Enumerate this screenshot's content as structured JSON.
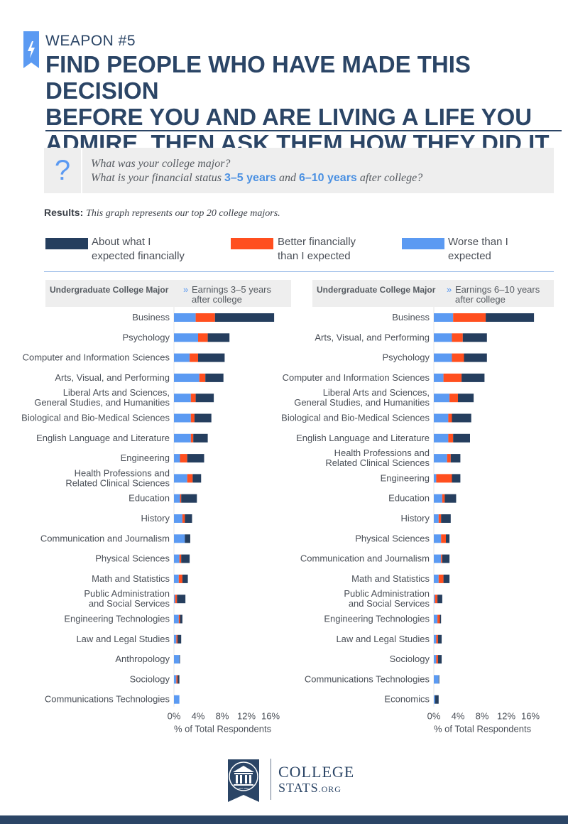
{
  "header": {
    "weapon": "WEAPON #5",
    "headline_lines": [
      "FIND PEOPLE WHO HAVE MADE THIS DECISION",
      "BEFORE YOU AND ARE LIVING A LIFE YOU",
      "ADMIRE. THEN ASK THEM HOW THEY DID IT."
    ]
  },
  "question": {
    "icon": "?",
    "line1": "What was your college major?",
    "line2_prefix": "What is your financial status ",
    "line2_hl1": "3–5 years",
    "line2_mid": " and ",
    "line2_hl2": "6–10  years",
    "line2_suffix": " after college?"
  },
  "results": {
    "label": "Results:",
    "text": "This graph represents our top 20 college majors."
  },
  "legend": [
    {
      "line1": "About what I",
      "line2": "expected financially",
      "color": "#253e5e"
    },
    {
      "line1": "Better financially",
      "line2": "than I expected",
      "color": "#ff4f1f"
    },
    {
      "line1": "Worse than I",
      "line2": "expected",
      "color": "#5b9af2"
    }
  ],
  "panels": [
    {
      "major": "Undergraduate College Major",
      "arrow": "»",
      "earnings_line1": "Earnings 3–5 years",
      "earnings_line2": "after college"
    },
    {
      "major": "Undergraduate College Major",
      "arrow": "»",
      "earnings_line1": "Earnings 6–10 years",
      "earnings_line2": "after college"
    }
  ],
  "chart_data": [
    {
      "type": "bar",
      "orientation": "horizontal",
      "stacked": true,
      "title": "Earnings 3–5 years after college",
      "xlabel": "% of Total Respondents",
      "xlim": [
        0,
        16
      ],
      "ticks": [
        "0%",
        "4%",
        "8%",
        "12%",
        "16%"
      ],
      "tick_values": [
        0,
        4,
        8,
        12,
        16
      ],
      "categories": [
        "Business",
        "Psychology",
        "Computer and Information Sciences",
        "Arts, Visual, and Performing",
        "Liberal Arts and Sciences, General Studies, and Humanities",
        "Biological and Bio-Medical Sciences",
        "English Language and Literature",
        "Engineering",
        "Health Professions and Related Clinical Sciences",
        "Education",
        "History",
        "Communication and Journalism",
        "Physical Sciences",
        "Math and Statistics",
        "Public Administration and Social Services",
        "Engineering Technologies",
        "Law and Legal Studies",
        "Anthropology",
        "Sociology",
        "Communications Technologies"
      ],
      "series": [
        {
          "name": "Worse than I expected",
          "color": "#5b9af2",
          "values": [
            3.6,
            4.0,
            2.6,
            4.2,
            2.8,
            2.8,
            2.8,
            1.0,
            2.2,
            1.0,
            1.4,
            1.8,
            0.9,
            0.8,
            0.2,
            0.8,
            0.4,
            0.9,
            0.4,
            0.9
          ]
        },
        {
          "name": "Better than I expected",
          "color": "#ff4f1f",
          "values": [
            3.2,
            1.6,
            1.4,
            1.0,
            0.8,
            0.6,
            0.4,
            1.2,
            0.9,
            0.2,
            0.4,
            0.0,
            0.3,
            0.6,
            0.3,
            0.2,
            0.2,
            0.0,
            0.2,
            0.0
          ]
        },
        {
          "name": "About what I expected financially",
          "color": "#253e5e",
          "values": [
            9.8,
            3.6,
            4.4,
            3.0,
            3.0,
            2.8,
            2.4,
            2.8,
            1.4,
            2.6,
            1.2,
            0.9,
            1.4,
            0.9,
            1.4,
            0.4,
            0.6,
            0.1,
            0.3,
            0.0
          ]
        }
      ]
    },
    {
      "type": "bar",
      "orientation": "horizontal",
      "stacked": true,
      "title": "Earnings 6–10 years after college",
      "xlabel": "% of Total Respondents",
      "xlim": [
        0,
        16
      ],
      "ticks": [
        "0%",
        "4%",
        "8%",
        "12%",
        "16%"
      ],
      "tick_values": [
        0,
        4,
        8,
        12,
        16
      ],
      "categories": [
        "Business",
        "Arts, Visual, and Performing",
        "Psychology",
        "Computer and Information Sciences",
        "Liberal Arts and Sciences, General Studies, and Humanities",
        "Biological and Bio-Medical Sciences",
        "English Language and Literature",
        "Health Professions and Related Clinical Sciences",
        "Engineering",
        "Education",
        "History",
        "Physical Sciences",
        "Communication and Journalism",
        "Math and Statistics",
        "Public Administration and Social Services",
        "Engineering Technologies",
        "Law and Legal Studies",
        "Sociology",
        "Communications Technologies",
        "Economics"
      ],
      "series": [
        {
          "name": "Worse than I expected",
          "color": "#5b9af2",
          "values": [
            3.2,
            3.0,
            3.0,
            1.6,
            2.6,
            2.4,
            2.4,
            2.2,
            0.4,
            1.4,
            0.8,
            1.2,
            1.2,
            0.8,
            0.2,
            0.6,
            0.4,
            0.4,
            0.8,
            0.2
          ]
        },
        {
          "name": "Better than I expected",
          "color": "#ff4f1f",
          "values": [
            5.4,
            1.8,
            2.0,
            3.0,
            1.4,
            0.6,
            0.8,
            0.6,
            2.6,
            0.4,
            0.4,
            0.8,
            0.2,
            0.8,
            0.4,
            0.4,
            0.3,
            0.3,
            0.0,
            0.0
          ]
        },
        {
          "name": "About what I expected financially",
          "color": "#253e5e",
          "values": [
            8.0,
            4.0,
            3.8,
            3.8,
            2.6,
            3.2,
            2.8,
            1.6,
            1.4,
            1.9,
            1.6,
            0.6,
            1.2,
            1.0,
            0.8,
            0.2,
            0.6,
            0.6,
            0.1,
            0.6
          ]
        }
      ]
    }
  ],
  "logo": {
    "line1": "COLLEGE",
    "line2": "STATS",
    "line2_suffix": ".ORG",
    "seal_text": "EST. 2010"
  }
}
